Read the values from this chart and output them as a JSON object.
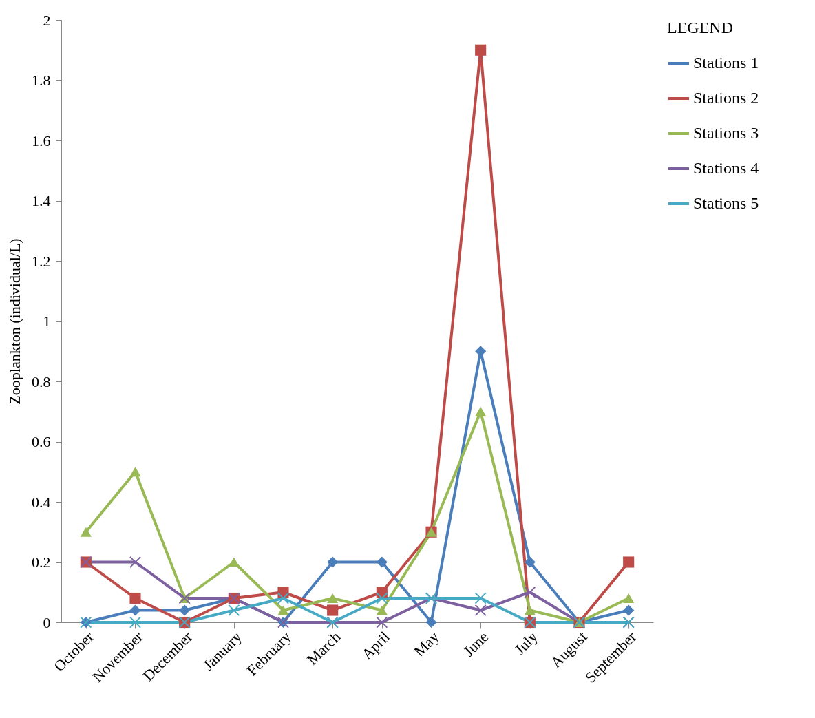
{
  "chart_data": {
    "type": "line",
    "ylabel": "Zooplankton (individual/L)",
    "legend_title": "LEGEND",
    "legend": "right",
    "grid": false,
    "categories": [
      "October",
      "November",
      "December",
      "January",
      "February",
      "March",
      "April",
      "May",
      "June",
      "July",
      "August",
      "September"
    ],
    "ylim": [
      0,
      2
    ],
    "yticks": [
      0,
      0.2,
      0.4,
      0.6,
      0.8,
      1,
      1.2,
      1.4,
      1.6,
      1.8,
      2
    ],
    "series": [
      {
        "name": "Stations 1",
        "color": "#4a7ebb",
        "marker": "diamond",
        "values": [
          0,
          0.04,
          0.04,
          0.08,
          0,
          0.2,
          0.2,
          0,
          0.9,
          0.2,
          0,
          0.04
        ]
      },
      {
        "name": "Stations 2",
        "color": "#be4b48",
        "marker": "square",
        "values": [
          0.2,
          0.08,
          0,
          0.08,
          0.1,
          0.04,
          0.1,
          0.3,
          1.9,
          0,
          0,
          0.2
        ]
      },
      {
        "name": "Stations 3",
        "color": "#98b954",
        "marker": "triangle",
        "values": [
          0.3,
          0.5,
          0.08,
          0.2,
          0.04,
          0.08,
          0.04,
          0.3,
          0.7,
          0.04,
          0,
          0.08
        ]
      },
      {
        "name": "Stations 4",
        "color": "#7d60a0",
        "marker": "cross",
        "values": [
          0.2,
          0.2,
          0.08,
          0.08,
          0,
          0,
          0,
          0.08,
          0.04,
          0.1,
          0,
          0
        ]
      },
      {
        "name": "Stations 5",
        "color": "#46aac5",
        "marker": "cross",
        "values": [
          0,
          0,
          0,
          0.04,
          0.08,
          0,
          0.08,
          0.08,
          0.08,
          0,
          0,
          0
        ]
      }
    ]
  }
}
